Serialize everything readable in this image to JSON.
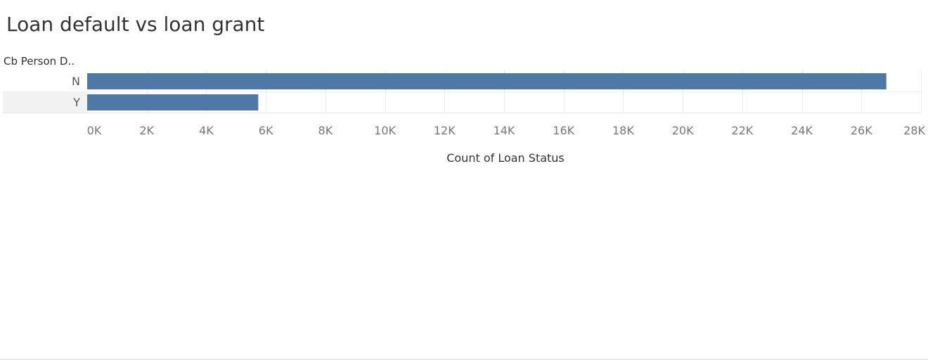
{
  "title": "Loan default vs loan grant",
  "chart_data": {
    "type": "bar",
    "orientation": "horizontal",
    "row_header": "Cb Person D..",
    "categories": [
      "N",
      "Y"
    ],
    "values": [
      26836,
      5745
    ],
    "xlabel": "Count of Loan Status",
    "xlim": [
      0,
      28000
    ],
    "ticks": [
      "0K",
      "2K",
      "4K",
      "6K",
      "8K",
      "10K",
      "12K",
      "14K",
      "16K",
      "18K",
      "20K",
      "22K",
      "24K",
      "26K",
      "28K"
    ],
    "tick_values": [
      0,
      2000,
      4000,
      6000,
      8000,
      10000,
      12000,
      14000,
      16000,
      18000,
      20000,
      22000,
      24000,
      26000,
      28000
    ],
    "bar_color": "#4e79a7",
    "grid": true,
    "highlighted_row": "Y",
    "highlight_color": "#f2f2f2"
  }
}
